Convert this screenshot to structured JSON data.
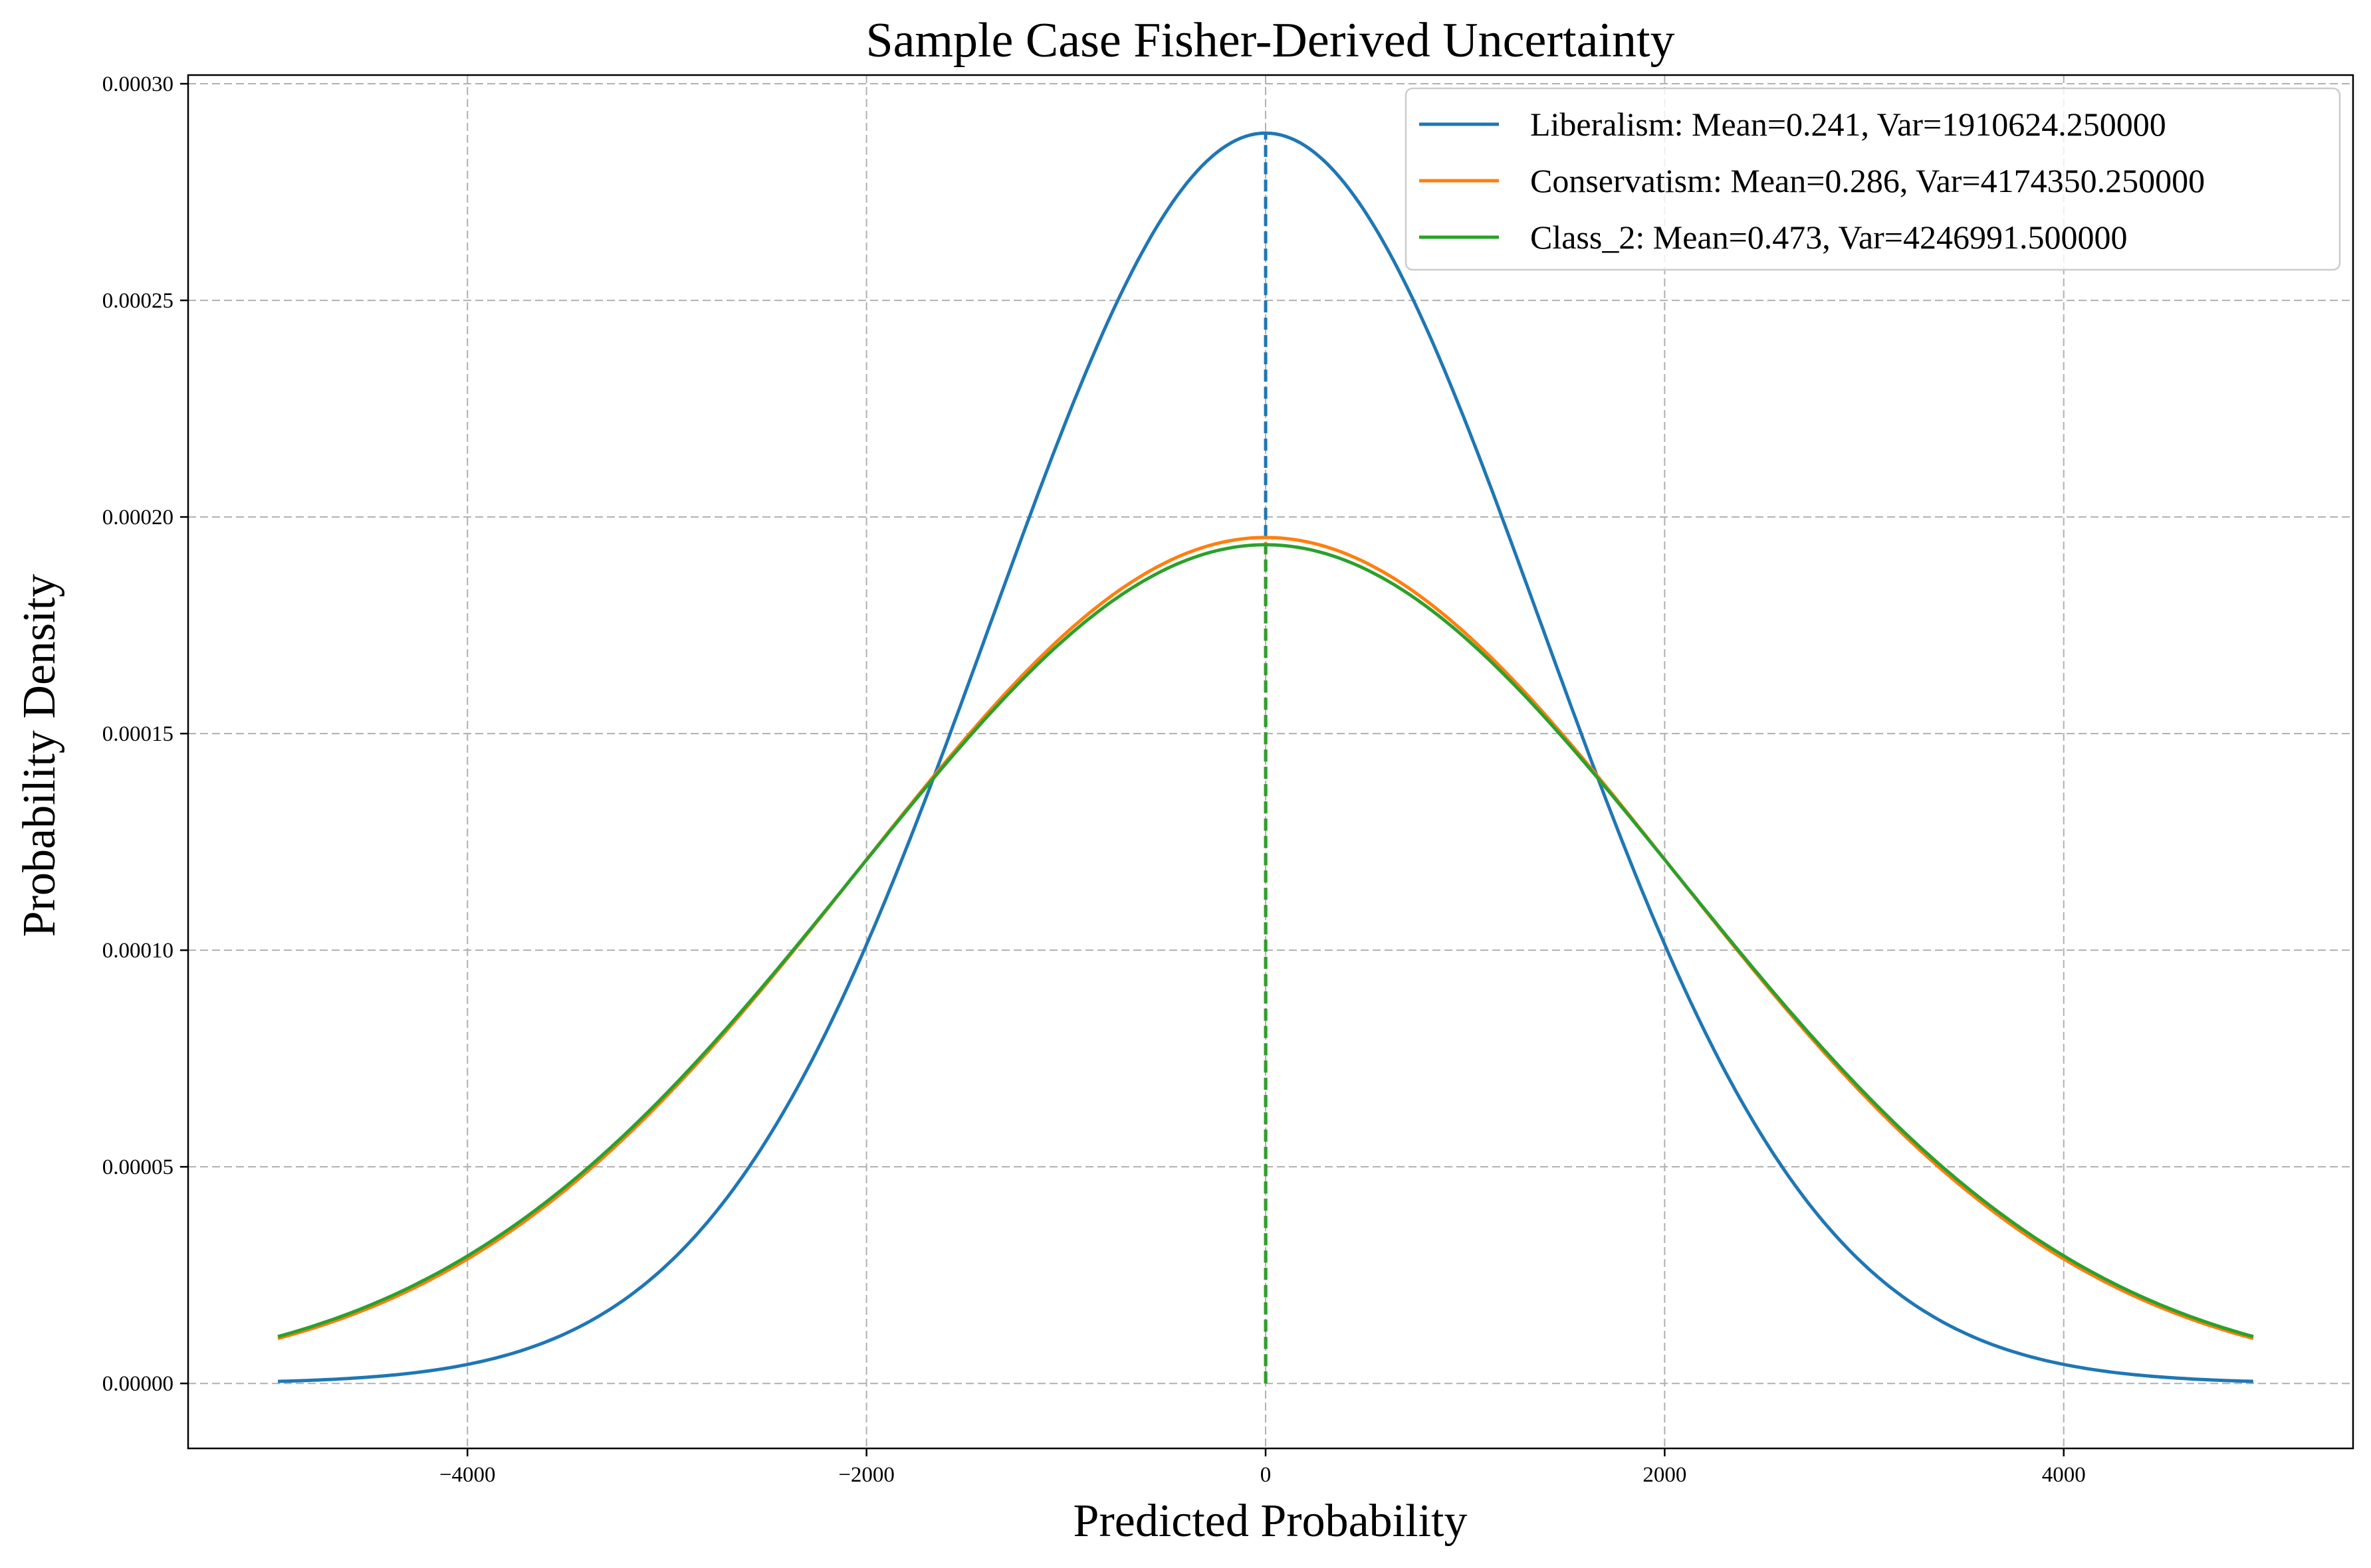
{
  "chart_data": {
    "type": "line",
    "title": "Sample Case Fisher-Derived Uncertainty",
    "xlabel": "Predicted Probability",
    "ylabel": "Probability Density",
    "xlim": [
      -5400,
      5450
    ],
    "ylim": [
      -1.5e-05,
      0.000302
    ],
    "xticks": [
      -4000,
      -2000,
      0,
      2000,
      4000
    ],
    "xtick_labels": [
      "−4000",
      "−2000",
      "0",
      "2000",
      "4000"
    ],
    "yticks": [
      0,
      5e-05,
      0.0001,
      0.00015,
      0.0002,
      0.00025,
      0.0003
    ],
    "ytick_labels": [
      "0.00000",
      "0.00005",
      "0.00010",
      "0.00015",
      "0.00020",
      "0.00025",
      "0.00030"
    ],
    "grid": true,
    "legend_position": "top-right",
    "x_range": [
      -4950,
      4950
    ],
    "series": [
      {
        "name": "Liberalism: Mean=0.241, Var=1910624.250000",
        "mean": 0.241,
        "variance": 1910624.25,
        "color": "#1f77b4"
      },
      {
        "name": "Conservatism: Mean=0.286, Var=4174350.250000",
        "mean": 0.286,
        "variance": 4174350.25,
        "color": "#ff7f0e"
      },
      {
        "name": "Class_2: Mean=0.473, Var=4246991.500000",
        "mean": 0.473,
        "variance": 4246991.5,
        "color": "#2ca02c"
      }
    ]
  }
}
